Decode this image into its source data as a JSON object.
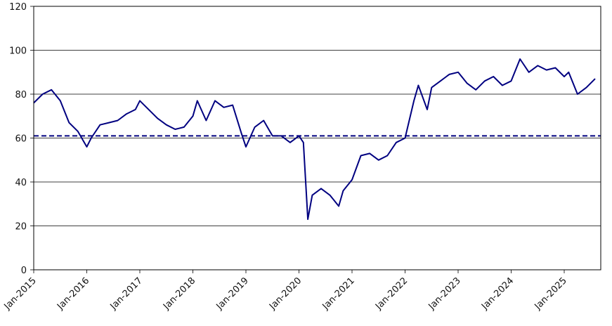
{
  "chart_data": {
    "type": "line",
    "title": "",
    "xlabel": "",
    "ylabel": "",
    "ylim": [
      0,
      120
    ],
    "y_ticks": [
      "0",
      "20",
      "40",
      "60",
      "80",
      "100",
      "120"
    ],
    "x_ticks": [
      "Jan-2015",
      "Jan-2016",
      "Jan-2017",
      "Jan-2018",
      "Jan-2019",
      "Jan-2020",
      "Jan-2021",
      "Jan-2022",
      "Jan-2023",
      "Jan-2024",
      "Jan-2025"
    ],
    "grid": "horizontal",
    "line_color": "#000080",
    "reference_line": {
      "value": 61,
      "style": "dashed",
      "color": "#000080"
    },
    "series": [
      {
        "x": [
          "2015-01",
          "2015-03",
          "2015-05",
          "2015-07",
          "2015-09",
          "2015-11",
          "2016-01",
          "2016-02",
          "2016-04",
          "2016-06",
          "2016-08",
          "2016-10",
          "2016-12",
          "2017-01",
          "2017-03",
          "2017-05",
          "2017-07",
          "2017-09",
          "2017-11",
          "2018-01",
          "2018-02",
          "2018-04",
          "2018-06",
          "2018-08",
          "2018-10",
          "2018-12",
          "2019-01",
          "2019-03",
          "2019-05",
          "2019-07",
          "2019-09",
          "2019-11",
          "2020-01",
          "2020-02",
          "2020-03",
          "2020-04",
          "2020-06",
          "2020-08",
          "2020-10",
          "2020-11",
          "2021-01",
          "2021-03",
          "2021-05",
          "2021-07",
          "2021-09",
          "2021-11",
          "2022-01",
          "2022-03",
          "2022-04",
          "2022-06",
          "2022-07",
          "2022-09",
          "2022-11",
          "2023-01",
          "2023-03",
          "2023-05",
          "2023-07",
          "2023-09",
          "2023-11",
          "2024-01",
          "2024-03",
          "2024-05",
          "2024-07",
          "2024-09",
          "2024-11",
          "2025-01",
          "2025-02",
          "2025-04",
          "2025-06",
          "2025-08"
        ],
        "values": [
          76,
          80,
          82,
          77,
          67,
          63,
          56,
          60,
          66,
          67,
          68,
          71,
          73,
          77,
          73,
          69,
          66,
          64,
          65,
          70,
          77,
          68,
          77,
          74,
          75,
          62,
          56,
          65,
          68,
          61,
          61,
          58,
          61,
          58,
          23,
          34,
          37,
          34,
          29,
          36,
          41,
          52,
          53,
          50,
          52,
          58,
          60,
          77,
          84,
          73,
          83,
          86,
          89,
          90,
          85,
          82,
          86,
          88,
          84,
          86,
          96,
          90,
          93,
          91,
          92,
          88,
          90,
          80,
          83,
          87
        ]
      }
    ]
  }
}
